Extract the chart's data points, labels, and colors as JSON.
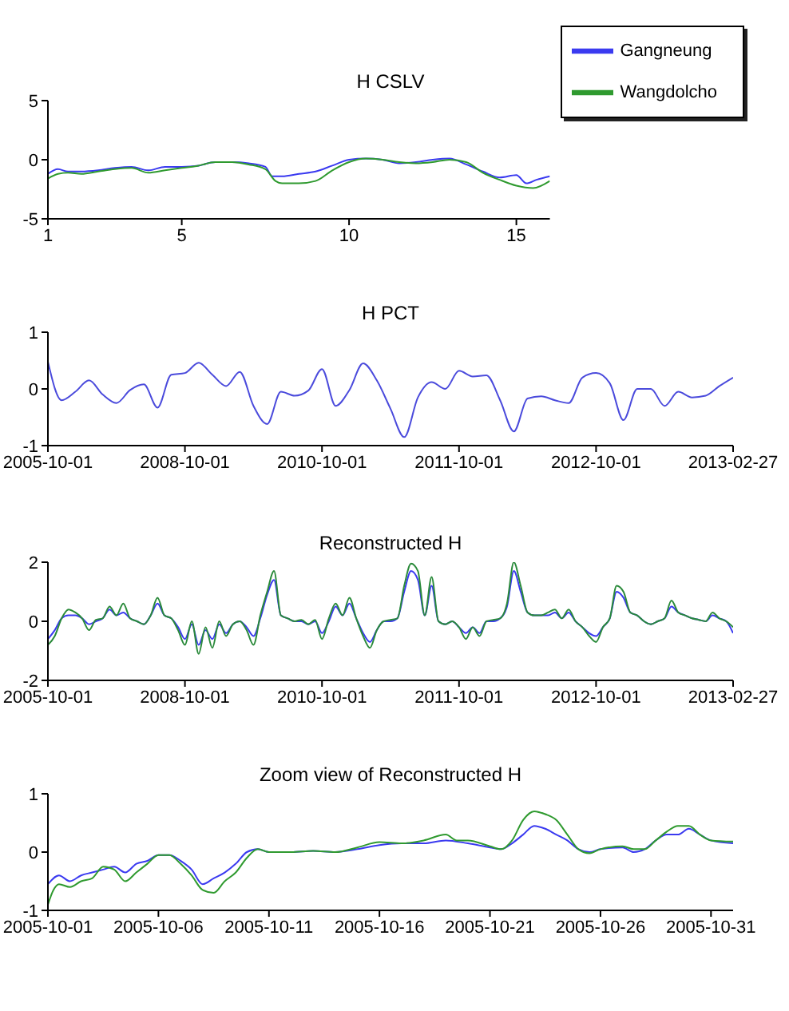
{
  "chart_data": [
    {
      "type": "line",
      "title": "H CSLV",
      "xlim": [
        1,
        16
      ],
      "xticks": [
        1,
        5,
        10,
        15
      ],
      "ylim": [
        -5,
        5
      ],
      "yticks": [
        -5,
        0,
        5
      ],
      "legend": "top right",
      "series": [
        {
          "name": "Gangneung",
          "color": "#3a3af0",
          "x": [
            1,
            1.3,
            1.6,
            2,
            2.5,
            3,
            3.5,
            4,
            4.5,
            5,
            5.5,
            6,
            6.5,
            7,
            7.5,
            7.7,
            8,
            8.5,
            9,
            9.5,
            10,
            10.5,
            11,
            11.5,
            12,
            12.5,
            13,
            13.5,
            14,
            14.5,
            15,
            15.3,
            15.6,
            16
          ],
          "values": [
            -1.2,
            -0.8,
            -1.0,
            -1.0,
            -0.9,
            -0.7,
            -0.6,
            -0.9,
            -0.6,
            -0.6,
            -0.5,
            -0.2,
            -0.2,
            -0.3,
            -0.6,
            -1.4,
            -1.4,
            -1.2,
            -1.0,
            -0.5,
            0.0,
            0.1,
            0.0,
            -0.3,
            -0.2,
            0.0,
            0.1,
            -0.4,
            -1.0,
            -1.5,
            -1.3,
            -2.0,
            -1.7,
            -1.4
          ]
        },
        {
          "name": "Wangdolcho",
          "color": "#2f9a2f",
          "x": [
            1,
            1.3,
            1.6,
            2,
            2.5,
            3,
            3.5,
            4,
            4.5,
            5,
            5.5,
            6,
            6.5,
            7,
            7.5,
            7.8,
            8,
            8.5,
            9,
            9.5,
            10,
            10.5,
            11,
            11.5,
            12,
            12.5,
            13,
            13.5,
            14,
            14.5,
            15,
            15.5,
            16
          ],
          "values": [
            -1.6,
            -1.2,
            -1.1,
            -1.2,
            -1.0,
            -0.8,
            -0.7,
            -1.1,
            -0.9,
            -0.7,
            -0.5,
            -0.2,
            -0.2,
            -0.4,
            -0.8,
            -1.8,
            -2.0,
            -2.0,
            -1.8,
            -0.9,
            -0.2,
            0.1,
            0.0,
            -0.2,
            -0.3,
            -0.2,
            0.0,
            -0.2,
            -1.1,
            -1.7,
            -2.2,
            -2.4,
            -1.8
          ]
        }
      ]
    },
    {
      "type": "line",
      "title": "H PCT",
      "categories": [
        "2005-10-01",
        null,
        null,
        null,
        null,
        null,
        null,
        null,
        null,
        null,
        "2008-10-01",
        null,
        null,
        null,
        null,
        null,
        null,
        null,
        null,
        null,
        "2010-10-01",
        null,
        null,
        null,
        null,
        null,
        null,
        null,
        null,
        null,
        "2011-10-01",
        null,
        null,
        null,
        null,
        null,
        null,
        null,
        null,
        null,
        "2012-10-01",
        null,
        null,
        null,
        null,
        null,
        null,
        null,
        null,
        null,
        "2013-02-27"
      ],
      "ylim": [
        -1,
        1
      ],
      "yticks": [
        -1,
        0,
        1
      ],
      "series": [
        {
          "color": "#4b4bdc",
          "values": [
            0.48,
            -0.2,
            -0.05,
            0.15,
            -0.1,
            -0.25,
            -0.02,
            0.08,
            -0.33,
            0.25,
            0.28,
            0.46,
            0.25,
            0.05,
            0.3,
            -0.3,
            -0.62,
            -0.05,
            -0.12,
            -0.03,
            0.35,
            -0.3,
            -0.02,
            0.45,
            0.15,
            -0.35,
            -0.85,
            -0.15,
            0.12,
            0.0,
            0.32,
            0.22,
            0.24,
            -0.2,
            -0.75,
            -0.17,
            -0.13,
            -0.2,
            -0.25,
            0.2,
            0.28,
            0.1,
            -0.55,
            0.0,
            0.0,
            -0.3,
            -0.05,
            -0.15,
            -0.12,
            0.05,
            0.2
          ]
        }
      ]
    },
    {
      "type": "line",
      "title": "Reconstructed H",
      "categories": [
        "2005-10-01",
        null,
        null,
        null,
        null,
        null,
        null,
        null,
        null,
        null,
        null,
        null,
        null,
        null,
        null,
        null,
        null,
        null,
        null,
        null,
        "2008-10-01",
        null,
        null,
        null,
        null,
        null,
        null,
        null,
        null,
        null,
        null,
        null,
        null,
        null,
        null,
        null,
        null,
        null,
        null,
        null,
        "2010-10-01",
        null,
        null,
        null,
        null,
        null,
        null,
        null,
        null,
        null,
        null,
        null,
        null,
        null,
        null,
        null,
        null,
        null,
        null,
        null,
        "2011-10-01",
        null,
        null,
        null,
        null,
        null,
        null,
        null,
        null,
        null,
        null,
        null,
        null,
        null,
        null,
        null,
        null,
        null,
        null,
        null,
        "2012-10-01",
        null,
        null,
        null,
        null,
        null,
        null,
        null,
        null,
        null,
        null,
        null,
        null,
        null,
        null,
        null,
        null,
        null,
        null,
        null,
        "2013-02-27"
      ],
      "ylim": [
        -2,
        2
      ],
      "yticks": [
        -2,
        0,
        2
      ],
      "series": [
        {
          "color": "#3a3af0",
          "values": [
            -0.6,
            -0.3,
            0.1,
            0.2,
            0.2,
            0.1,
            -0.1,
            0.0,
            0.1,
            0.4,
            0.2,
            0.3,
            0.1,
            0.0,
            -0.1,
            0.2,
            0.6,
            0.2,
            0.1,
            -0.2,
            -0.6,
            -0.1,
            -0.8,
            -0.3,
            -0.6,
            -0.1,
            -0.4,
            -0.1,
            0.0,
            -0.2,
            -0.5,
            0.1,
            0.9,
            1.4,
            0.2,
            0.1,
            0.0,
            0.0,
            -0.1,
            0.0,
            -0.4,
            0.0,
            0.5,
            0.2,
            0.6,
            0.1,
            -0.4,
            -0.7,
            -0.3,
            0.0,
            0.0,
            0.1,
            1.0,
            1.7,
            1.4,
            0.2,
            1.2,
            0.0,
            -0.1,
            0.0,
            -0.2,
            -0.4,
            -0.2,
            -0.4,
            0.0,
            0.0,
            0.1,
            0.5,
            1.7,
            1.0,
            0.3,
            0.2,
            0.2,
            0.2,
            0.3,
            0.1,
            0.3,
            0.0,
            -0.2,
            -0.4,
            -0.5,
            -0.2,
            0.1,
            1.0,
            0.8,
            0.3,
            0.2,
            0.0,
            -0.1,
            0.0,
            0.1,
            0.5,
            0.3,
            0.2,
            0.1,
            0.05,
            0.0,
            0.2,
            0.1,
            0.0,
            -0.4
          ]
        },
        {
          "color": "#2a8a3a",
          "values": [
            -0.8,
            -0.5,
            0.1,
            0.4,
            0.3,
            0.1,
            -0.3,
            0.05,
            0.1,
            0.5,
            0.2,
            0.6,
            0.1,
            0.0,
            -0.1,
            0.2,
            0.8,
            0.2,
            0.1,
            -0.3,
            -0.8,
            0.0,
            -1.1,
            -0.2,
            -0.9,
            0.0,
            -0.5,
            -0.1,
            0.0,
            -0.3,
            -0.8,
            0.2,
            1.0,
            1.7,
            0.2,
            0.1,
            0.0,
            0.05,
            -0.1,
            0.05,
            -0.6,
            0.1,
            0.6,
            0.2,
            0.8,
            0.1,
            -0.5,
            -0.9,
            -0.3,
            0.0,
            0.05,
            0.1,
            1.2,
            1.95,
            1.7,
            0.2,
            1.5,
            0.0,
            -0.1,
            0.0,
            -0.2,
            -0.6,
            -0.2,
            -0.5,
            0.0,
            0.05,
            0.1,
            0.6,
            2.0,
            1.2,
            0.3,
            0.2,
            0.2,
            0.3,
            0.4,
            0.1,
            0.4,
            0.0,
            -0.2,
            -0.5,
            -0.7,
            -0.2,
            0.1,
            1.2,
            1.0,
            0.3,
            0.2,
            0.0,
            -0.1,
            0.0,
            0.1,
            0.7,
            0.3,
            0.2,
            0.1,
            0.05,
            0.0,
            0.3,
            0.1,
            0.0,
            -0.2
          ]
        }
      ]
    },
    {
      "type": "line",
      "title": "Zoom view of Reconstructed H",
      "xlim": [
        "2005-10-01",
        "2005-11-01"
      ],
      "xticks": [
        "2005-10-01",
        "2005-10-06",
        "2005-10-11",
        "2005-10-16",
        "2005-10-21",
        "2005-10-26",
        "2005-10-31"
      ],
      "ylim": [
        -1,
        1
      ],
      "yticks": [
        -1,
        0,
        1
      ],
      "series": [
        {
          "color": "#3a3af0",
          "x": [
            "2005-10-01",
            "2005-10-01T12:00",
            "2005-10-02",
            "2005-10-02T12:00",
            "2005-10-03",
            "2005-10-03T12:00",
            "2005-10-04",
            "2005-10-04T12:00",
            "2005-10-05",
            "2005-10-05T12:00",
            "2005-10-06",
            "2005-10-06T12:00",
            "2005-10-07",
            "2005-10-07T12:00",
            "2005-10-08",
            "2005-10-08T12:00",
            "2005-10-09",
            "2005-10-09T12:00",
            "2005-10-10",
            "2005-10-10T12:00",
            "2005-10-11",
            "2005-10-12",
            "2005-10-13",
            "2005-10-14",
            "2005-10-15",
            "2005-10-16",
            "2005-10-17",
            "2005-10-18",
            "2005-10-19",
            "2005-10-20",
            "2005-10-21",
            "2005-10-21T12:00",
            "2005-10-22",
            "2005-10-22T12:00",
            "2005-10-23",
            "2005-10-23T12:00",
            "2005-10-24",
            "2005-10-24T12:00",
            "2005-10-25",
            "2005-10-25T12:00",
            "2005-10-26",
            "2005-10-27",
            "2005-10-27T12:00",
            "2005-10-28",
            "2005-10-28T12:00",
            "2005-10-29",
            "2005-10-29T12:00",
            "2005-10-30",
            "2005-10-30T12:00",
            "2005-10-31",
            "2005-11-01"
          ],
          "values": [
            -0.55,
            -0.4,
            -0.5,
            -0.4,
            -0.35,
            -0.3,
            -0.25,
            -0.35,
            -0.2,
            -0.15,
            -0.05,
            -0.05,
            -0.15,
            -0.3,
            -0.55,
            -0.45,
            -0.35,
            -0.2,
            0.0,
            0.05,
            0.0,
            0.0,
            0.02,
            0.0,
            0.05,
            0.12,
            0.15,
            0.15,
            0.2,
            0.15,
            0.08,
            0.05,
            0.15,
            0.3,
            0.45,
            0.4,
            0.3,
            0.2,
            0.05,
            0.0,
            0.05,
            0.08,
            0.0,
            0.05,
            0.2,
            0.3,
            0.3,
            0.4,
            0.3,
            0.2,
            0.15
          ]
        },
        {
          "color": "#2f9a2f",
          "x": [
            "2005-10-01",
            "2005-10-01T06:00",
            "2005-10-01T12:00",
            "2005-10-02",
            "2005-10-02T12:00",
            "2005-10-03",
            "2005-10-03T12:00",
            "2005-10-04",
            "2005-10-04T12:00",
            "2005-10-05",
            "2005-10-05T12:00",
            "2005-10-06",
            "2005-10-06T12:00",
            "2005-10-07",
            "2005-10-07T12:00",
            "2005-10-08",
            "2005-10-08T12:00",
            "2005-10-09",
            "2005-10-09T12:00",
            "2005-10-10",
            "2005-10-10T12:00",
            "2005-10-11",
            "2005-10-12",
            "2005-10-13",
            "2005-10-14",
            "2005-10-15",
            "2005-10-16",
            "2005-10-17",
            "2005-10-18",
            "2005-10-19",
            "2005-10-19T12:00",
            "2005-10-20",
            "2005-10-21",
            "2005-10-21T12:00",
            "2005-10-22",
            "2005-10-22T12:00",
            "2005-10-23",
            "2005-10-23T12:00",
            "2005-10-24",
            "2005-10-24T12:00",
            "2005-10-25",
            "2005-10-25T12:00",
            "2005-10-26",
            "2005-10-27",
            "2005-10-27T12:00",
            "2005-10-28",
            "2005-10-28T12:00",
            "2005-10-29",
            "2005-10-29T12:00",
            "2005-10-30",
            "2005-10-30T12:00",
            "2005-10-31",
            "2005-11-01"
          ],
          "values": [
            -0.9,
            -0.65,
            -0.55,
            -0.6,
            -0.5,
            -0.45,
            -0.25,
            -0.3,
            -0.5,
            -0.35,
            -0.2,
            -0.05,
            -0.05,
            -0.2,
            -0.4,
            -0.65,
            -0.7,
            -0.5,
            -0.35,
            -0.1,
            0.05,
            0.0,
            0.0,
            0.02,
            0.0,
            0.08,
            0.17,
            0.15,
            0.2,
            0.3,
            0.2,
            0.2,
            0.1,
            0.05,
            0.2,
            0.55,
            0.7,
            0.65,
            0.55,
            0.3,
            0.05,
            -0.02,
            0.05,
            0.1,
            0.05,
            0.05,
            0.2,
            0.35,
            0.45,
            0.45,
            0.3,
            0.2,
            0.18
          ]
        }
      ]
    }
  ]
}
